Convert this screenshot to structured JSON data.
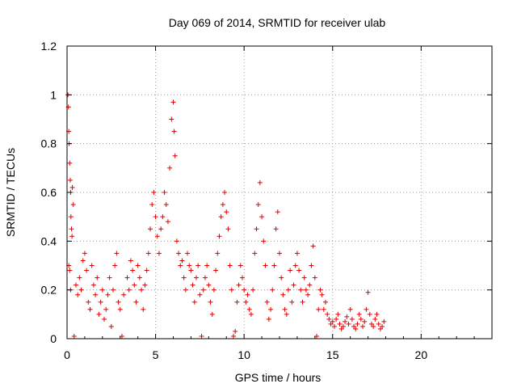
{
  "chart_data": {
    "type": "scatter",
    "title": "Day 069 of 2014, SRMTID for receiver ulab",
    "xlabel": "GPS time / hours",
    "ylabel": "SRMTID / TECUs",
    "xlim": [
      0,
      24
    ],
    "ylim": [
      0,
      1.2
    ],
    "xticks": [
      0,
      5,
      10,
      15,
      20
    ],
    "yticks": [
      0,
      0.2,
      0.4,
      0.6,
      0.8,
      1,
      1.2
    ],
    "xtick_labels": [
      "0",
      "5",
      "10",
      "15",
      "20"
    ],
    "ytick_labels": [
      "0",
      "0.2",
      "0.4",
      "0.6",
      "0.8",
      "1",
      "1.2"
    ],
    "grid": true,
    "marker": "+",
    "color": "#e00000",
    "series": [
      {
        "name": "SRMTID",
        "points": [
          [
            0.05,
            1.0
          ],
          [
            0.08,
            0.95
          ],
          [
            0.1,
            0.85
          ],
          [
            0.12,
            0.8
          ],
          [
            0.15,
            0.72
          ],
          [
            0.18,
            0.65
          ],
          [
            0.2,
            0.6
          ],
          [
            0.22,
            0.5
          ],
          [
            0.25,
            0.45
          ],
          [
            0.28,
            0.42
          ],
          [
            0.3,
            0.62
          ],
          [
            0.35,
            0.55
          ],
          [
            0.1,
            0.3
          ],
          [
            0.15,
            0.28
          ],
          [
            0.2,
            0.2
          ],
          [
            0.4,
            0.01
          ],
          [
            0.5,
            0.22
          ],
          [
            0.6,
            0.18
          ],
          [
            0.7,
            0.25
          ],
          [
            0.8,
            0.2
          ],
          [
            0.9,
            0.32
          ],
          [
            1.0,
            0.35
          ],
          [
            1.1,
            0.28
          ],
          [
            1.2,
            0.15
          ],
          [
            1.3,
            0.12
          ],
          [
            1.4,
            0.3
          ],
          [
            1.5,
            0.22
          ],
          [
            1.6,
            0.18
          ],
          [
            1.7,
            0.25
          ],
          [
            1.8,
            0.1
          ],
          [
            1.9,
            0.15
          ],
          [
            2.0,
            0.2
          ],
          [
            2.1,
            0.08
          ],
          [
            2.2,
            0.12
          ],
          [
            2.3,
            0.18
          ],
          [
            2.4,
            0.25
          ],
          [
            2.5,
            0.05
          ],
          [
            2.6,
            0.2
          ],
          [
            2.7,
            0.3
          ],
          [
            2.8,
            0.35
          ],
          [
            2.9,
            0.15
          ],
          [
            3.0,
            0.12
          ],
          [
            3.1,
            0.01
          ],
          [
            3.2,
            0.18
          ],
          [
            3.4,
            0.25
          ],
          [
            3.5,
            0.2
          ],
          [
            3.6,
            0.32
          ],
          [
            3.7,
            0.28
          ],
          [
            3.8,
            0.22
          ],
          [
            3.9,
            0.15
          ],
          [
            4.0,
            0.3
          ],
          [
            4.1,
            0.25
          ],
          [
            4.2,
            0.2
          ],
          [
            4.3,
            0.12
          ],
          [
            4.4,
            0.22
          ],
          [
            4.5,
            0.28
          ],
          [
            4.6,
            0.35
          ],
          [
            4.7,
            0.45
          ],
          [
            4.8,
            0.55
          ],
          [
            4.9,
            0.6
          ],
          [
            5.0,
            0.5
          ],
          [
            5.1,
            0.42
          ],
          [
            5.2,
            0.35
          ],
          [
            5.3,
            0.45
          ],
          [
            5.4,
            0.5
          ],
          [
            5.5,
            0.6
          ],
          [
            5.6,
            0.55
          ],
          [
            5.7,
            0.48
          ],
          [
            5.8,
            0.7
          ],
          [
            5.9,
            0.9
          ],
          [
            6.0,
            0.97
          ],
          [
            6.05,
            0.85
          ],
          [
            6.1,
            0.75
          ],
          [
            6.2,
            0.4
          ],
          [
            6.3,
            0.35
          ],
          [
            6.4,
            0.3
          ],
          [
            6.5,
            0.32
          ],
          [
            6.6,
            0.25
          ],
          [
            6.7,
            0.2
          ],
          [
            6.8,
            0.35
          ],
          [
            6.9,
            0.3
          ],
          [
            7.0,
            0.28
          ],
          [
            7.1,
            0.22
          ],
          [
            7.2,
            0.15
          ],
          [
            7.3,
            0.25
          ],
          [
            7.4,
            0.3
          ],
          [
            7.5,
            0.18
          ],
          [
            7.6,
            0.01
          ],
          [
            7.7,
            0.2
          ],
          [
            7.8,
            0.25
          ],
          [
            7.9,
            0.3
          ],
          [
            8.0,
            0.22
          ],
          [
            8.1,
            0.15
          ],
          [
            8.2,
            0.1
          ],
          [
            8.3,
            0.2
          ],
          [
            8.4,
            0.28
          ],
          [
            8.5,
            0.35
          ],
          [
            8.6,
            0.42
          ],
          [
            8.7,
            0.5
          ],
          [
            8.8,
            0.55
          ],
          [
            8.9,
            0.6
          ],
          [
            9.0,
            0.52
          ],
          [
            9.1,
            0.45
          ],
          [
            9.2,
            0.3
          ],
          [
            9.3,
            0.2
          ],
          [
            9.4,
            0.01
          ],
          [
            9.5,
            0.03
          ],
          [
            9.6,
            0.15
          ],
          [
            9.7,
            0.22
          ],
          [
            9.8,
            0.3
          ],
          [
            9.9,
            0.25
          ],
          [
            10.0,
            0.2
          ],
          [
            10.1,
            0.15
          ],
          [
            10.2,
            0.18
          ],
          [
            10.3,
            0.12
          ],
          [
            10.4,
            0.1
          ],
          [
            10.5,
            0.2
          ],
          [
            10.6,
            0.35
          ],
          [
            10.7,
            0.45
          ],
          [
            10.8,
            0.55
          ],
          [
            10.9,
            0.64
          ],
          [
            11.0,
            0.5
          ],
          [
            11.1,
            0.4
          ],
          [
            11.2,
            0.3
          ],
          [
            11.3,
            0.15
          ],
          [
            11.4,
            0.08
          ],
          [
            11.5,
            0.12
          ],
          [
            11.6,
            0.2
          ],
          [
            11.7,
            0.3
          ],
          [
            11.8,
            0.45
          ],
          [
            11.9,
            0.52
          ],
          [
            12.0,
            0.35
          ],
          [
            12.1,
            0.25
          ],
          [
            12.2,
            0.18
          ],
          [
            12.3,
            0.12
          ],
          [
            12.4,
            0.1
          ],
          [
            12.5,
            0.2
          ],
          [
            12.6,
            0.28
          ],
          [
            12.7,
            0.15
          ],
          [
            12.8,
            0.22
          ],
          [
            12.9,
            0.3
          ],
          [
            13.0,
            0.35
          ],
          [
            13.1,
            0.28
          ],
          [
            13.2,
            0.2
          ],
          [
            13.3,
            0.15
          ],
          [
            13.4,
            0.25
          ],
          [
            13.5,
            0.2
          ],
          [
            13.6,
            0.18
          ],
          [
            13.7,
            0.22
          ],
          [
            13.8,
            0.3
          ],
          [
            13.9,
            0.38
          ],
          [
            14.0,
            0.25
          ],
          [
            14.1,
            0.01
          ],
          [
            14.2,
            0.12
          ],
          [
            14.3,
            0.2
          ],
          [
            14.4,
            0.18
          ],
          [
            14.5,
            0.12
          ],
          [
            14.6,
            0.15
          ],
          [
            14.7,
            0.1
          ],
          [
            14.8,
            0.08
          ],
          [
            14.9,
            0.06
          ],
          [
            15.0,
            0.07
          ],
          [
            15.1,
            0.05
          ],
          [
            15.2,
            0.08
          ],
          [
            15.3,
            0.1
          ],
          [
            15.4,
            0.06
          ],
          [
            15.5,
            0.04
          ],
          [
            15.6,
            0.05
          ],
          [
            15.7,
            0.07
          ],
          [
            15.8,
            0.09
          ],
          [
            15.9,
            0.06
          ],
          [
            16.0,
            0.12
          ],
          [
            16.1,
            0.08
          ],
          [
            16.2,
            0.05
          ],
          [
            16.3,
            0.04
          ],
          [
            16.4,
            0.06
          ],
          [
            16.5,
            0.1
          ],
          [
            16.6,
            0.08
          ],
          [
            16.7,
            0.05
          ],
          [
            16.8,
            0.07
          ],
          [
            16.9,
            0.12
          ],
          [
            17.0,
            0.19
          ],
          [
            17.1,
            0.1
          ],
          [
            17.2,
            0.06
          ],
          [
            17.3,
            0.05
          ],
          [
            17.4,
            0.08
          ],
          [
            17.5,
            0.1
          ],
          [
            17.6,
            0.06
          ],
          [
            17.7,
            0.04
          ],
          [
            17.8,
            0.05
          ],
          [
            17.9,
            0.07
          ]
        ]
      }
    ]
  }
}
